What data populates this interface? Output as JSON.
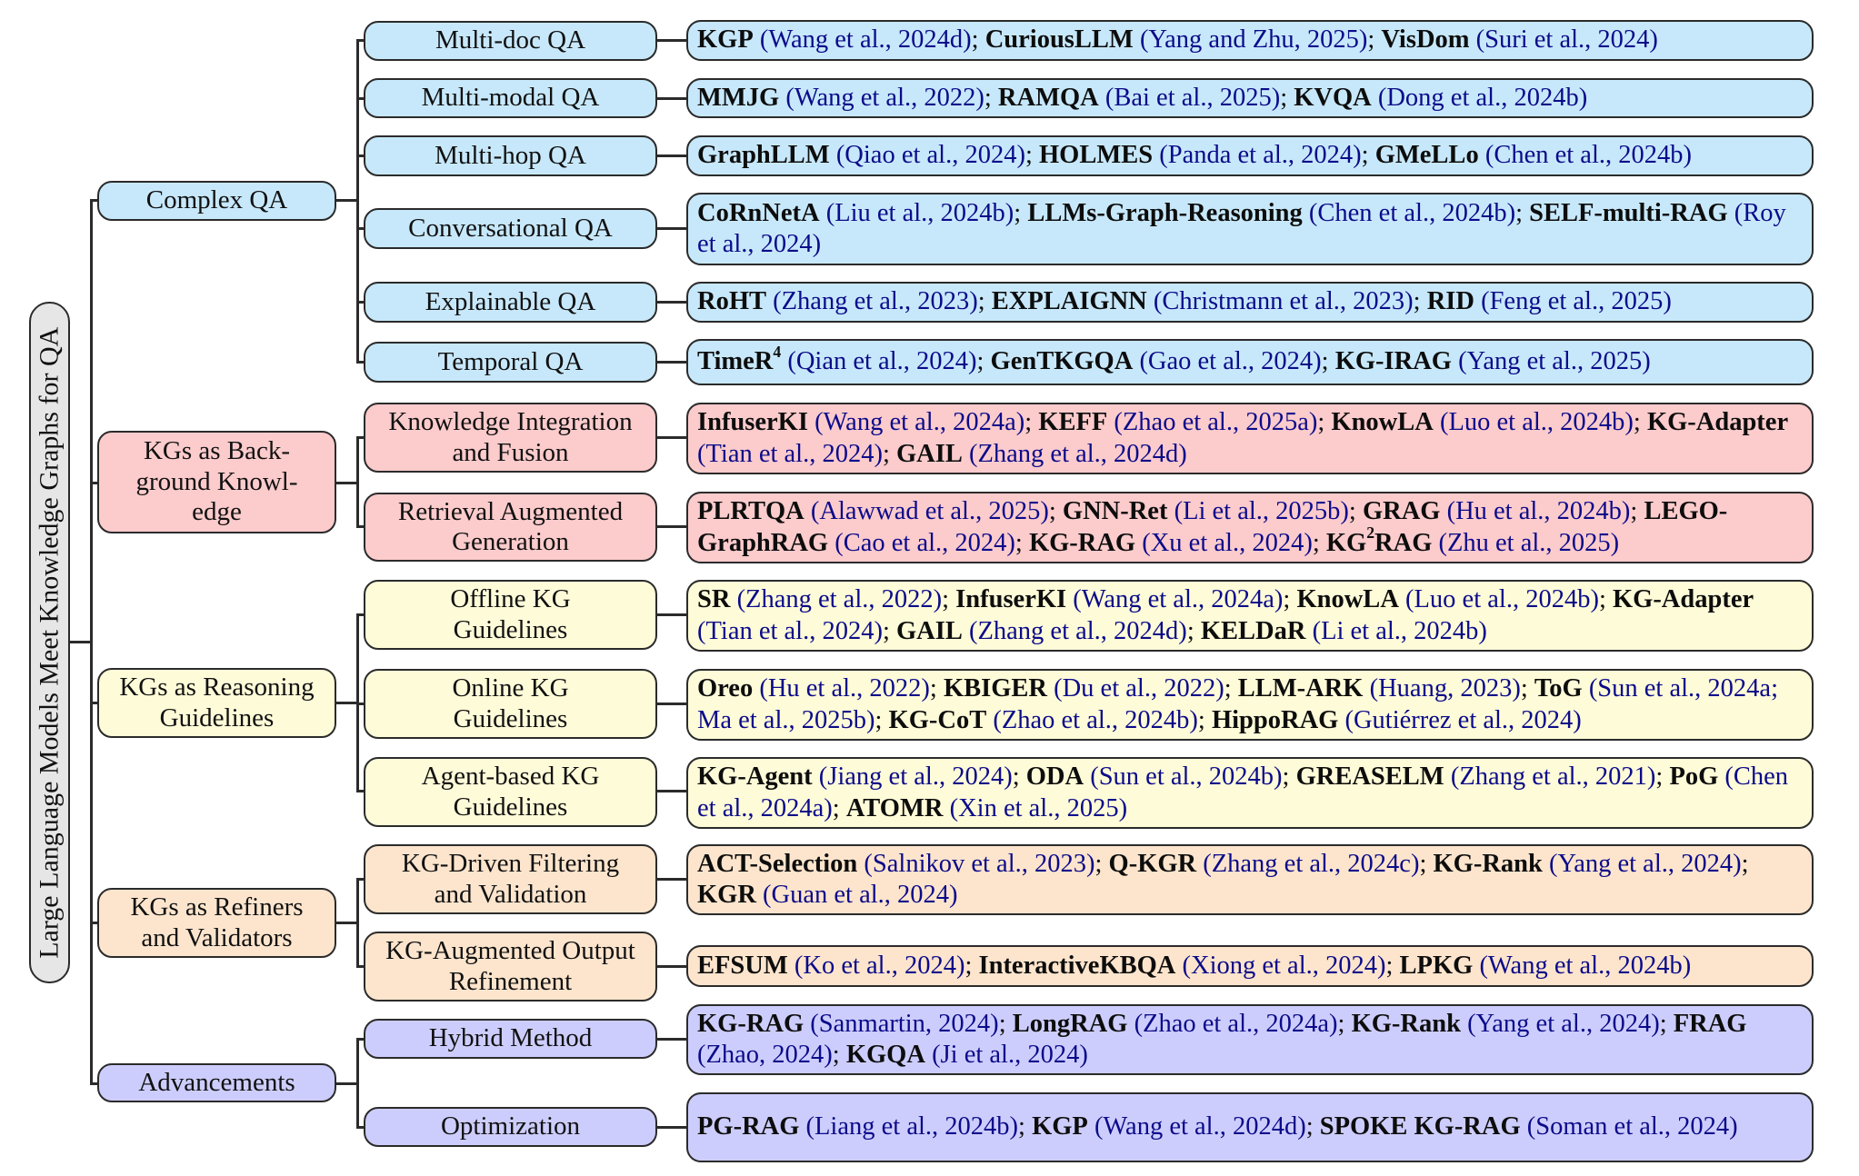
{
  "root": {
    "label": "Large Language Models Meet Knowledge Graphs for QA",
    "color": "#e6e6e6"
  },
  "colors": {
    "complex_qa": "#c7e8fa",
    "background_knowledge": "#fccbcc",
    "reasoning_guidelines": "#fefbd8",
    "refiners_validators": "#fde5cd",
    "advancements": "#cdcdfd",
    "citation_text": "#0b0b8a",
    "border": "#2b2b2b"
  },
  "categories": [
    {
      "label": "Complex QA",
      "subcategories": [
        {
          "label": "Multi-doc QA",
          "methods": [
            {
              "name": "KGP",
              "cite": "(Wang et al., 2024d)"
            },
            {
              "name": "CuriousLLM",
              "cite": "(Yang and Zhu, 2025)"
            },
            {
              "name": "VisDom",
              "cite": "(Suri et al., 2024)"
            }
          ]
        },
        {
          "label": "Multi-modal QA",
          "methods": [
            {
              "name": "MMJG",
              "cite": "(Wang et al., 2022)"
            },
            {
              "name": "RAMQA",
              "cite": "(Bai et al., 2025)"
            },
            {
              "name": "KVQA",
              "cite": "(Dong et al., 2024b)"
            }
          ]
        },
        {
          "label": "Multi-hop QA",
          "methods": [
            {
              "name": "GraphLLM",
              "cite": "(Qiao et al., 2024)"
            },
            {
              "name": "HOLMES",
              "cite": "(Panda et al., 2024)"
            },
            {
              "name": "GMeLLo",
              "cite": "(Chen et al., 2024b)"
            }
          ]
        },
        {
          "label": "Conversational QA",
          "methods": [
            {
              "name": "CoRnNetA",
              "cite": "(Liu et al., 2024b)"
            },
            {
              "name": "LLMs-Graph-Reasoning",
              "cite": "(Chen et al., 2024b)"
            },
            {
              "name": "SELF-multi-RAG",
              "cite": "(Roy et al., 2024)"
            }
          ]
        },
        {
          "label": "Explainable QA",
          "methods": [
            {
              "name": "RoHT",
              "cite": "(Zhang et al., 2023)"
            },
            {
              "name": "EXPLAIGNN",
              "cite": "(Christmann et al., 2023)"
            },
            {
              "name": "RID",
              "cite": "(Feng et al., 2025)"
            }
          ]
        },
        {
          "label": "Temporal QA",
          "methods": [
            {
              "name": "TimeR",
              "sup": "4",
              "cite": "(Qian et al., 2024)"
            },
            {
              "name": "GenTKGQA",
              "cite": "(Gao et al., 2024)"
            },
            {
              "name": "KG-IRAG",
              "cite": "(Yang et al., 2025)"
            }
          ]
        }
      ]
    },
    {
      "label": "KGs as Background Knowledge",
      "label_lines": [
        "KGs as Back-",
        "ground Knowl-",
        "edge"
      ],
      "subcategories": [
        {
          "label": "Knowledge Integration and Fusion",
          "label_lines": [
            "Knowledge Integration",
            "and Fusion"
          ],
          "methods": [
            {
              "name": "InfuserKI",
              "cite": "(Wang et al., 2024a)"
            },
            {
              "name": "KEFF",
              "cite": "(Zhao et al., 2025a)"
            },
            {
              "name": "KnowLA",
              "cite": "(Luo et al., 2024b)"
            },
            {
              "name": "KG-Adapter",
              "cite": "(Tian et al., 2024)"
            },
            {
              "name": "GAIL",
              "cite": "(Zhang et al., 2024d)"
            }
          ]
        },
        {
          "label": "Retrieval Augmented Generation",
          "label_lines": [
            "Retrieval Augmented",
            "Generation"
          ],
          "methods": [
            {
              "name": "PLRTQA",
              "cite": "(Alawwad et al., 2025)"
            },
            {
              "name": "GNN-Ret",
              "cite": "(Li et al., 2025b)"
            },
            {
              "name": "GRAG",
              "cite": "(Hu et al., 2024b)"
            },
            {
              "name": "LEGO-GraphRAG",
              "cite": "(Cao et al., 2024)"
            },
            {
              "name": "KG-RAG",
              "cite": "(Xu et al., 2024)"
            },
            {
              "name": "KG2RAG",
              "name_pre": "KG",
              "sup": "2",
              "name_post": "RAG",
              "cite": "(Zhu et al., 2025)"
            }
          ]
        }
      ]
    },
    {
      "label": "KGs as Reasoning Guidelines",
      "label_lines": [
        "KGs as Reasoning",
        "Guidelines"
      ],
      "subcategories": [
        {
          "label": "Offline KG Guidelines",
          "label_lines": [
            "Offline KG",
            "Guidelines"
          ],
          "methods": [
            {
              "name": "SR",
              "cite": "(Zhang et al., 2022)"
            },
            {
              "name": "InfuserKI",
              "cite": "(Wang et al., 2024a)"
            },
            {
              "name": "KnowLA",
              "cite": "(Luo et al., 2024b)"
            },
            {
              "name": "KG-Adapter",
              "cite": "(Tian et al., 2024)"
            },
            {
              "name": "GAIL",
              "cite": "(Zhang et al., 2024d)"
            },
            {
              "name": "KELDaR",
              "cite": "(Li et al., 2024b)"
            }
          ]
        },
        {
          "label": "Online KG Guidelines",
          "label_lines": [
            "Online KG",
            "Guidelines"
          ],
          "methods": [
            {
              "name": "Oreo",
              "cite": "(Hu et al., 2022)"
            },
            {
              "name": "KBIGER",
              "cite": "(Du et al., 2022)"
            },
            {
              "name": "LLM-ARK",
              "cite": "(Huang, 2023)"
            },
            {
              "name": "ToG",
              "cite": "(Sun et al., 2024a; Ma et al., 2025b)"
            },
            {
              "name": "KG-CoT",
              "cite": "(Zhao et al., 2024b)"
            },
            {
              "name": "HippoRAG",
              "cite": "(Gutiérrez et al., 2024)"
            }
          ]
        },
        {
          "label": "Agent-based KG Guidelines",
          "label_lines": [
            "Agent-based KG",
            "Guidelines"
          ],
          "methods": [
            {
              "name": "KG-Agent",
              "cite": "(Jiang et al., 2024)"
            },
            {
              "name": "ODA",
              "cite": "(Sun et al., 2024b)"
            },
            {
              "name": "GREASELM",
              "cite": "(Zhang et al., 2021)"
            },
            {
              "name": "PoG",
              "cite": "(Chen et al., 2024a)"
            },
            {
              "name": "ATOMR",
              "cite": "(Xin et al., 2025)"
            }
          ]
        }
      ]
    },
    {
      "label": "KGs as Refiners and Validators",
      "label_lines": [
        "KGs as Refiners",
        "and Validators"
      ],
      "subcategories": [
        {
          "label": "KG-Driven Filtering and Validation",
          "label_lines": [
            "KG-Driven Filtering",
            "and Validation"
          ],
          "methods": [
            {
              "name": "ACT-Selection",
              "cite": "(Salnikov et al., 2023)"
            },
            {
              "name": "Q-KGR",
              "cite": "(Zhang et al., 2024c)"
            },
            {
              "name": "KG-Rank",
              "cite": "(Yang et al., 2024)"
            },
            {
              "name": "KGR",
              "cite": "(Guan et al., 2024)"
            }
          ]
        },
        {
          "label": "KG-Augmented Output Refinement",
          "label_lines": [
            "KG-Augmented Output",
            "Refinement"
          ],
          "methods": [
            {
              "name": "EFSUM",
              "cite": "(Ko et al., 2024)"
            },
            {
              "name": "InteractiveKBQA",
              "cite": "(Xiong et al., 2024)"
            },
            {
              "name": "LPKG",
              "cite": "(Wang et al., 2024b)"
            }
          ]
        }
      ]
    },
    {
      "label": "Advancements",
      "subcategories": [
        {
          "label": "Hybrid Method",
          "methods": [
            {
              "name": "KG-RAG",
              "cite": "(Sanmartin, 2024)"
            },
            {
              "name": "LongRAG",
              "cite": "(Zhao et al., 2024a)"
            },
            {
              "name": "KG-Rank",
              "cite": "(Yang et al., 2024)"
            },
            {
              "name": "FRAG",
              "cite": "(Zhao, 2024)"
            },
            {
              "name": "KGQA",
              "cite": "(Ji et al., 2024)"
            }
          ]
        },
        {
          "label": "Optimization",
          "methods": [
            {
              "name": "PG-RAG",
              "cite": "(Liang et al., 2024b)"
            },
            {
              "name": "KGP",
              "cite": "(Wang et al., 2024d)"
            },
            {
              "name": "SPOKE KG-RAG",
              "cite": "(Soman et al., 2024)"
            }
          ]
        }
      ]
    }
  ],
  "separator": "; "
}
